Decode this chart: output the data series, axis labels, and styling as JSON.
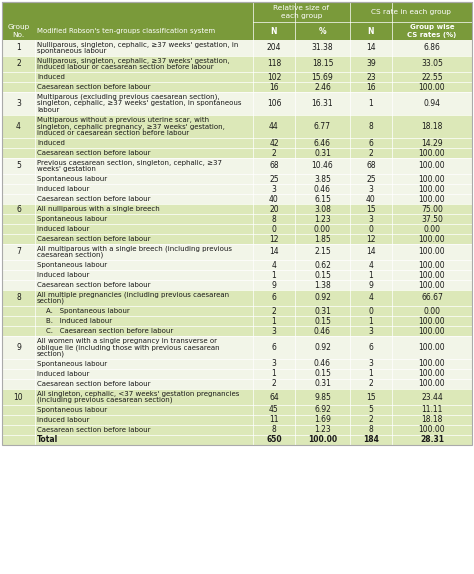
{
  "header_bg": "#7a9a3a",
  "header_text_color": "#ffffff",
  "row_light": "#f2f5e8",
  "row_dark": "#dce8b8",
  "span_header1": "Relative size of\neach group",
  "span_header2": "CS rate in each group",
  "rows": [
    {
      "group": "1",
      "desc": "Nulliparous, singleton, cephalic, ≥37 weeks' gestation, in\nspontaneous labour",
      "N1": "204",
      "pct": "31.38",
      "N2": "14",
      "cs": "6.86",
      "shade": 0,
      "lines": 2
    },
    {
      "group": "2",
      "desc": "Nulliparous, singleton, cephalic, ≥37 weeks' gestation,\ninduced labour or caesarean section before labour",
      "N1": "118",
      "pct": "18.15",
      "N2": "39",
      "cs": "33.05",
      "shade": 1,
      "lines": 2
    },
    {
      "group": "",
      "desc": "Induced",
      "N1": "102",
      "pct": "15.69",
      "N2": "23",
      "cs": "22.55",
      "shade": 1,
      "lines": 1
    },
    {
      "group": "",
      "desc": "Caesarean section before labour",
      "N1": "16",
      "pct": "2.46",
      "N2": "16",
      "cs": "100.00",
      "shade": 1,
      "lines": 1
    },
    {
      "group": "3",
      "desc": "Multiparous (excluding previous caesarean section),\nsingleton, cephalic, ≥37 weeks' gestation, in spontaneous\nlabour",
      "N1": "106",
      "pct": "16.31",
      "N2": "1",
      "cs": "0.94",
      "shade": 0,
      "lines": 3
    },
    {
      "group": "4",
      "desc": "Multiparous without a previous uterine scar, with\nsingleton, cephalic pregnancy, ≥37 weeks' gestation,\ninduced or caesarean section before labour",
      "N1": "44",
      "pct": "6.77",
      "N2": "8",
      "cs": "18.18",
      "shade": 1,
      "lines": 3
    },
    {
      "group": "",
      "desc": "Induced",
      "N1": "42",
      "pct": "6.46",
      "N2": "6",
      "cs": "14.29",
      "shade": 1,
      "lines": 1
    },
    {
      "group": "",
      "desc": "Caesarean section before labour",
      "N1": "2",
      "pct": "0.31",
      "N2": "2",
      "cs": "100.00",
      "shade": 1,
      "lines": 1
    },
    {
      "group": "5",
      "desc": "Previous caesarean section, singleton, cephalic, ≥37\nweeks' gestation",
      "N1": "68",
      "pct": "10.46",
      "N2": "68",
      "cs": "100.00",
      "shade": 0,
      "lines": 2
    },
    {
      "group": "",
      "desc": "Spontaneous labour",
      "N1": "25",
      "pct": "3.85",
      "N2": "25",
      "cs": "100.00",
      "shade": 0,
      "lines": 1
    },
    {
      "group": "",
      "desc": "Induced labour",
      "N1": "3",
      "pct": "0.46",
      "N2": "3",
      "cs": "100.00",
      "shade": 0,
      "lines": 1
    },
    {
      "group": "",
      "desc": "Caesarean section before labour",
      "N1": "40",
      "pct": "6.15",
      "N2": "40",
      "cs": "100.00",
      "shade": 0,
      "lines": 1
    },
    {
      "group": "6",
      "desc": "All nulliparous with a single breech",
      "N1": "20",
      "pct": "3.08",
      "N2": "15",
      "cs": "75.00",
      "shade": 1,
      "lines": 1
    },
    {
      "group": "",
      "desc": "Spontaneous labour",
      "N1": "8",
      "pct": "1.23",
      "N2": "3",
      "cs": "37.50",
      "shade": 1,
      "lines": 1
    },
    {
      "group": "",
      "desc": "Induced labour",
      "N1": "0",
      "pct": "0.00",
      "N2": "0",
      "cs": "0.00",
      "shade": 1,
      "lines": 1
    },
    {
      "group": "",
      "desc": "Caesarean section before labour",
      "N1": "12",
      "pct": "1.85",
      "N2": "12",
      "cs": "100.00",
      "shade": 1,
      "lines": 1
    },
    {
      "group": "7",
      "desc": "All multiparous with a single breech (including previous\ncaesarean section)",
      "N1": "14",
      "pct": "2.15",
      "N2": "14",
      "cs": "100.00",
      "shade": 0,
      "lines": 2
    },
    {
      "group": "",
      "desc": "Spontaneous labour",
      "N1": "4",
      "pct": "0.62",
      "N2": "4",
      "cs": "100.00",
      "shade": 0,
      "lines": 1
    },
    {
      "group": "",
      "desc": "Induced labour",
      "N1": "1",
      "pct": "0.15",
      "N2": "1",
      "cs": "100.00",
      "shade": 0,
      "lines": 1
    },
    {
      "group": "",
      "desc": "Caesarean section before labour",
      "N1": "9",
      "pct": "1.38",
      "N2": "9",
      "cs": "100.00",
      "shade": 0,
      "lines": 1
    },
    {
      "group": "8",
      "desc": "All multiple pregnancies (including previous caesarean\nsection)",
      "N1": "6",
      "pct": "0.92",
      "N2": "4",
      "cs": "66.67",
      "shade": 1,
      "lines": 2
    },
    {
      "group": "",
      "desc": "    A.   Spontaneous labour",
      "N1": "2",
      "pct": "0.31",
      "N2": "0",
      "cs": "0.00",
      "shade": 1,
      "lines": 1
    },
    {
      "group": "",
      "desc": "    B.   Induced labour",
      "N1": "1",
      "pct": "0.15",
      "N2": "1",
      "cs": "100.00",
      "shade": 1,
      "lines": 1
    },
    {
      "group": "",
      "desc": "    C.   Caesarean section before labour",
      "N1": "3",
      "pct": "0.46",
      "N2": "3",
      "cs": "100.00",
      "shade": 1,
      "lines": 1
    },
    {
      "group": "9",
      "desc": "All women with a single pregnancy in transverse or\noblique lie (including those with previous caesarean\nsection)",
      "N1": "6",
      "pct": "0.92",
      "N2": "6",
      "cs": "100.00",
      "shade": 0,
      "lines": 3
    },
    {
      "group": "",
      "desc": "Spontaneous labour",
      "N1": "3",
      "pct": "0.46",
      "N2": "3",
      "cs": "100.00",
      "shade": 0,
      "lines": 1
    },
    {
      "group": "",
      "desc": "Induced labour",
      "N1": "1",
      "pct": "0.15",
      "N2": "1",
      "cs": "100.00",
      "shade": 0,
      "lines": 1
    },
    {
      "group": "",
      "desc": "Caesarean section before labour",
      "N1": "2",
      "pct": "0.31",
      "N2": "2",
      "cs": "100.00",
      "shade": 0,
      "lines": 1
    },
    {
      "group": "10",
      "desc": "All singleton, cephalic, <37 weeks' gestation pregnancies\n(including previous caesarean section)",
      "N1": "64",
      "pct": "9.85",
      "N2": "15",
      "cs": "23.44",
      "shade": 1,
      "lines": 2
    },
    {
      "group": "",
      "desc": "Spontaneous labour",
      "N1": "45",
      "pct": "6.92",
      "N2": "5",
      "cs": "11.11",
      "shade": 1,
      "lines": 1
    },
    {
      "group": "",
      "desc": "Induced labour",
      "N1": "11",
      "pct": "1.69",
      "N2": "2",
      "cs": "18.18",
      "shade": 1,
      "lines": 1
    },
    {
      "group": "",
      "desc": "Caesarean section before labour",
      "N1": "8",
      "pct": "1.23",
      "N2": "8",
      "cs": "100.00",
      "shade": 1,
      "lines": 1
    },
    {
      "group": "Total",
      "desc": "Total",
      "N1": "650",
      "pct": "100.00",
      "N2": "184",
      "cs": "28.31",
      "shade": 0,
      "lines": 1
    }
  ]
}
